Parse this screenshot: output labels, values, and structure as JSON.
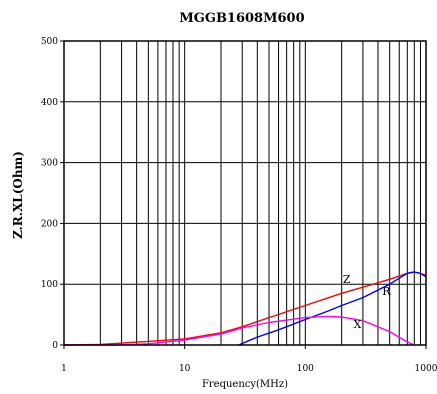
{
  "chart_data": {
    "type": "line",
    "title": "MGGB1608M600",
    "xlabel": "Frequency(MHz)",
    "ylabel": "Z.R.XL(Ohm)",
    "xscale": "log",
    "xlim": [
      1,
      1000
    ],
    "ylim": [
      0,
      500
    ],
    "xticks": [
      1,
      10,
      100,
      1000
    ],
    "xtick_labels": [
      "1",
      "10",
      "100",
      "1000"
    ],
    "yticks": [
      0,
      100,
      200,
      300,
      400,
      500
    ],
    "ytick_labels": [
      "0",
      "100",
      "200",
      "300",
      "400",
      "500"
    ],
    "grid": true,
    "series": [
      {
        "name": "Z",
        "color": "#ff0000",
        "x": [
          1,
          2,
          5,
          10,
          20,
          30,
          50,
          100,
          200,
          300,
          500,
          700,
          800,
          1000
        ],
        "y": [
          0,
          1,
          6,
          10,
          20,
          30,
          45,
          65,
          85,
          95,
          108,
          118,
          120,
          115
        ]
      },
      {
        "name": "R",
        "color": "#0000ff",
        "x": [
          28,
          40,
          60,
          100,
          150,
          200,
          300,
          500,
          700,
          800,
          900,
          1000
        ],
        "y": [
          0,
          13,
          25,
          42,
          55,
          65,
          78,
          100,
          118,
          120,
          118,
          112
        ]
      },
      {
        "name": "X",
        "color": "#ff00ff",
        "x": [
          1,
          3,
          5,
          10,
          20,
          30,
          50,
          100,
          150,
          200,
          300,
          500,
          700,
          800
        ],
        "y": [
          0,
          0,
          2,
          8,
          18,
          28,
          37,
          45,
          47,
          46,
          40,
          22,
          5,
          0
        ]
      }
    ],
    "annotations": [
      {
        "text": "Z",
        "x": 220,
        "y": 102,
        "color": "#000000"
      },
      {
        "text": "R",
        "x": 470,
        "y": 82,
        "color": "#000000"
      },
      {
        "text": "X",
        "x": 270,
        "y": 28,
        "color": "#000000"
      }
    ]
  }
}
